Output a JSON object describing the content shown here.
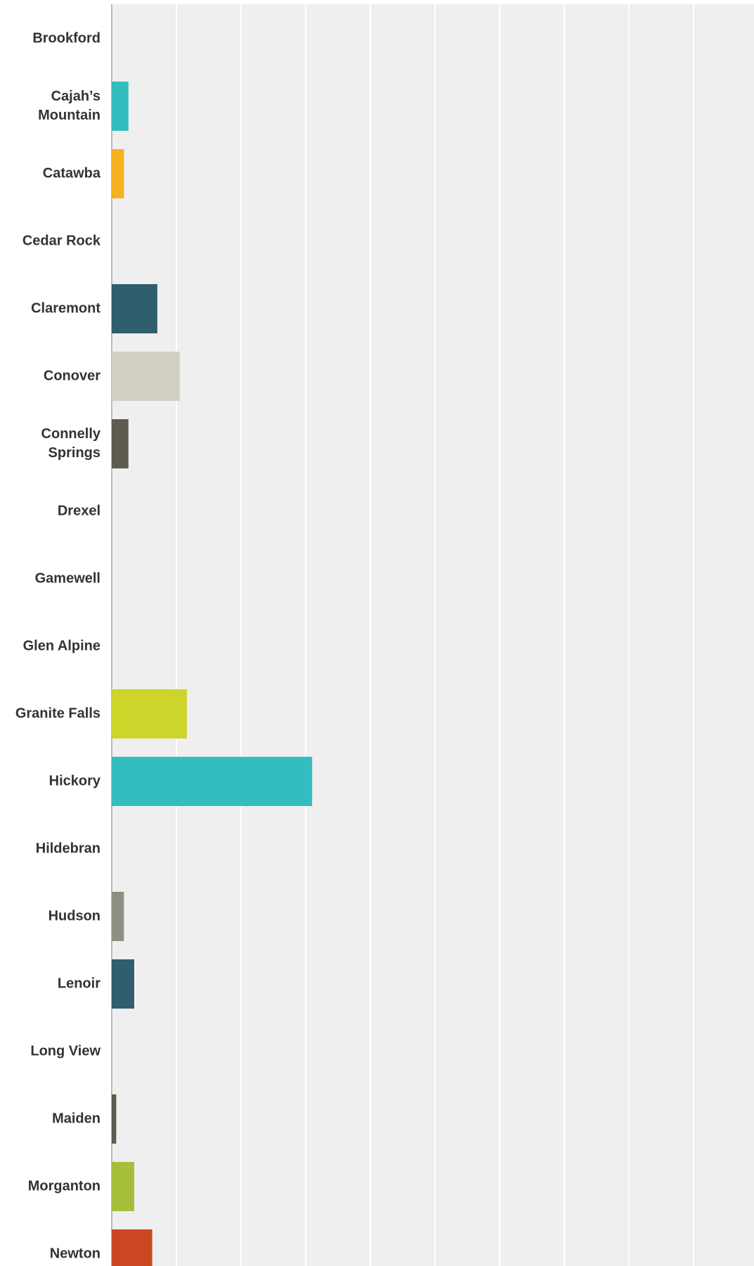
{
  "chart_data": {
    "type": "bar",
    "orientation": "horizontal",
    "categories": [
      [
        "Brookford"
      ],
      [
        "Cajah’s",
        "Mountain"
      ],
      [
        "Catawba"
      ],
      [
        "Cedar Rock"
      ],
      [
        "Claremont"
      ],
      [
        "Conover"
      ],
      [
        "Connelly",
        "Springs"
      ],
      [
        "Drexel"
      ],
      [
        "Gamewell"
      ],
      [
        "Glen Alpine"
      ],
      [
        "Granite Falls"
      ],
      [
        "Hickory"
      ],
      [
        "Hildebran"
      ],
      [
        "Hudson"
      ],
      [
        "Lenoir"
      ],
      [
        "Long View"
      ],
      [
        "Maiden"
      ],
      [
        "Morganton"
      ],
      [
        "Newton"
      ]
    ],
    "values": [
      0,
      2.6,
      1.9,
      0,
      7.1,
      10.6,
      2.6,
      0,
      0,
      0,
      11.7,
      31.2,
      0,
      1.9,
      3.5,
      0,
      0.7,
      3.5,
      6.3
    ],
    "colors": [
      "#33BDBE",
      "#33BDBE",
      "#F6B11E",
      "#2F5E6E",
      "#2F5E6E",
      "#D1CFC3",
      "#5E5C4F",
      "#33BDBE",
      "#33BDBE",
      "#33BDBE",
      "#CDD52B",
      "#33BDBE",
      "#33BDBE",
      "#8E8F83",
      "#2F5E6E",
      "#33BDBE",
      "#5E5C4F",
      "#A6BF3A",
      "#CB4721"
    ],
    "xlim": [
      0,
      100
    ],
    "grid": true,
    "gridline_count": 10,
    "plot_background": "#EFEFEF",
    "gridline_color": "#FFFFFF",
    "axis_color": "#BBBBBB"
  }
}
